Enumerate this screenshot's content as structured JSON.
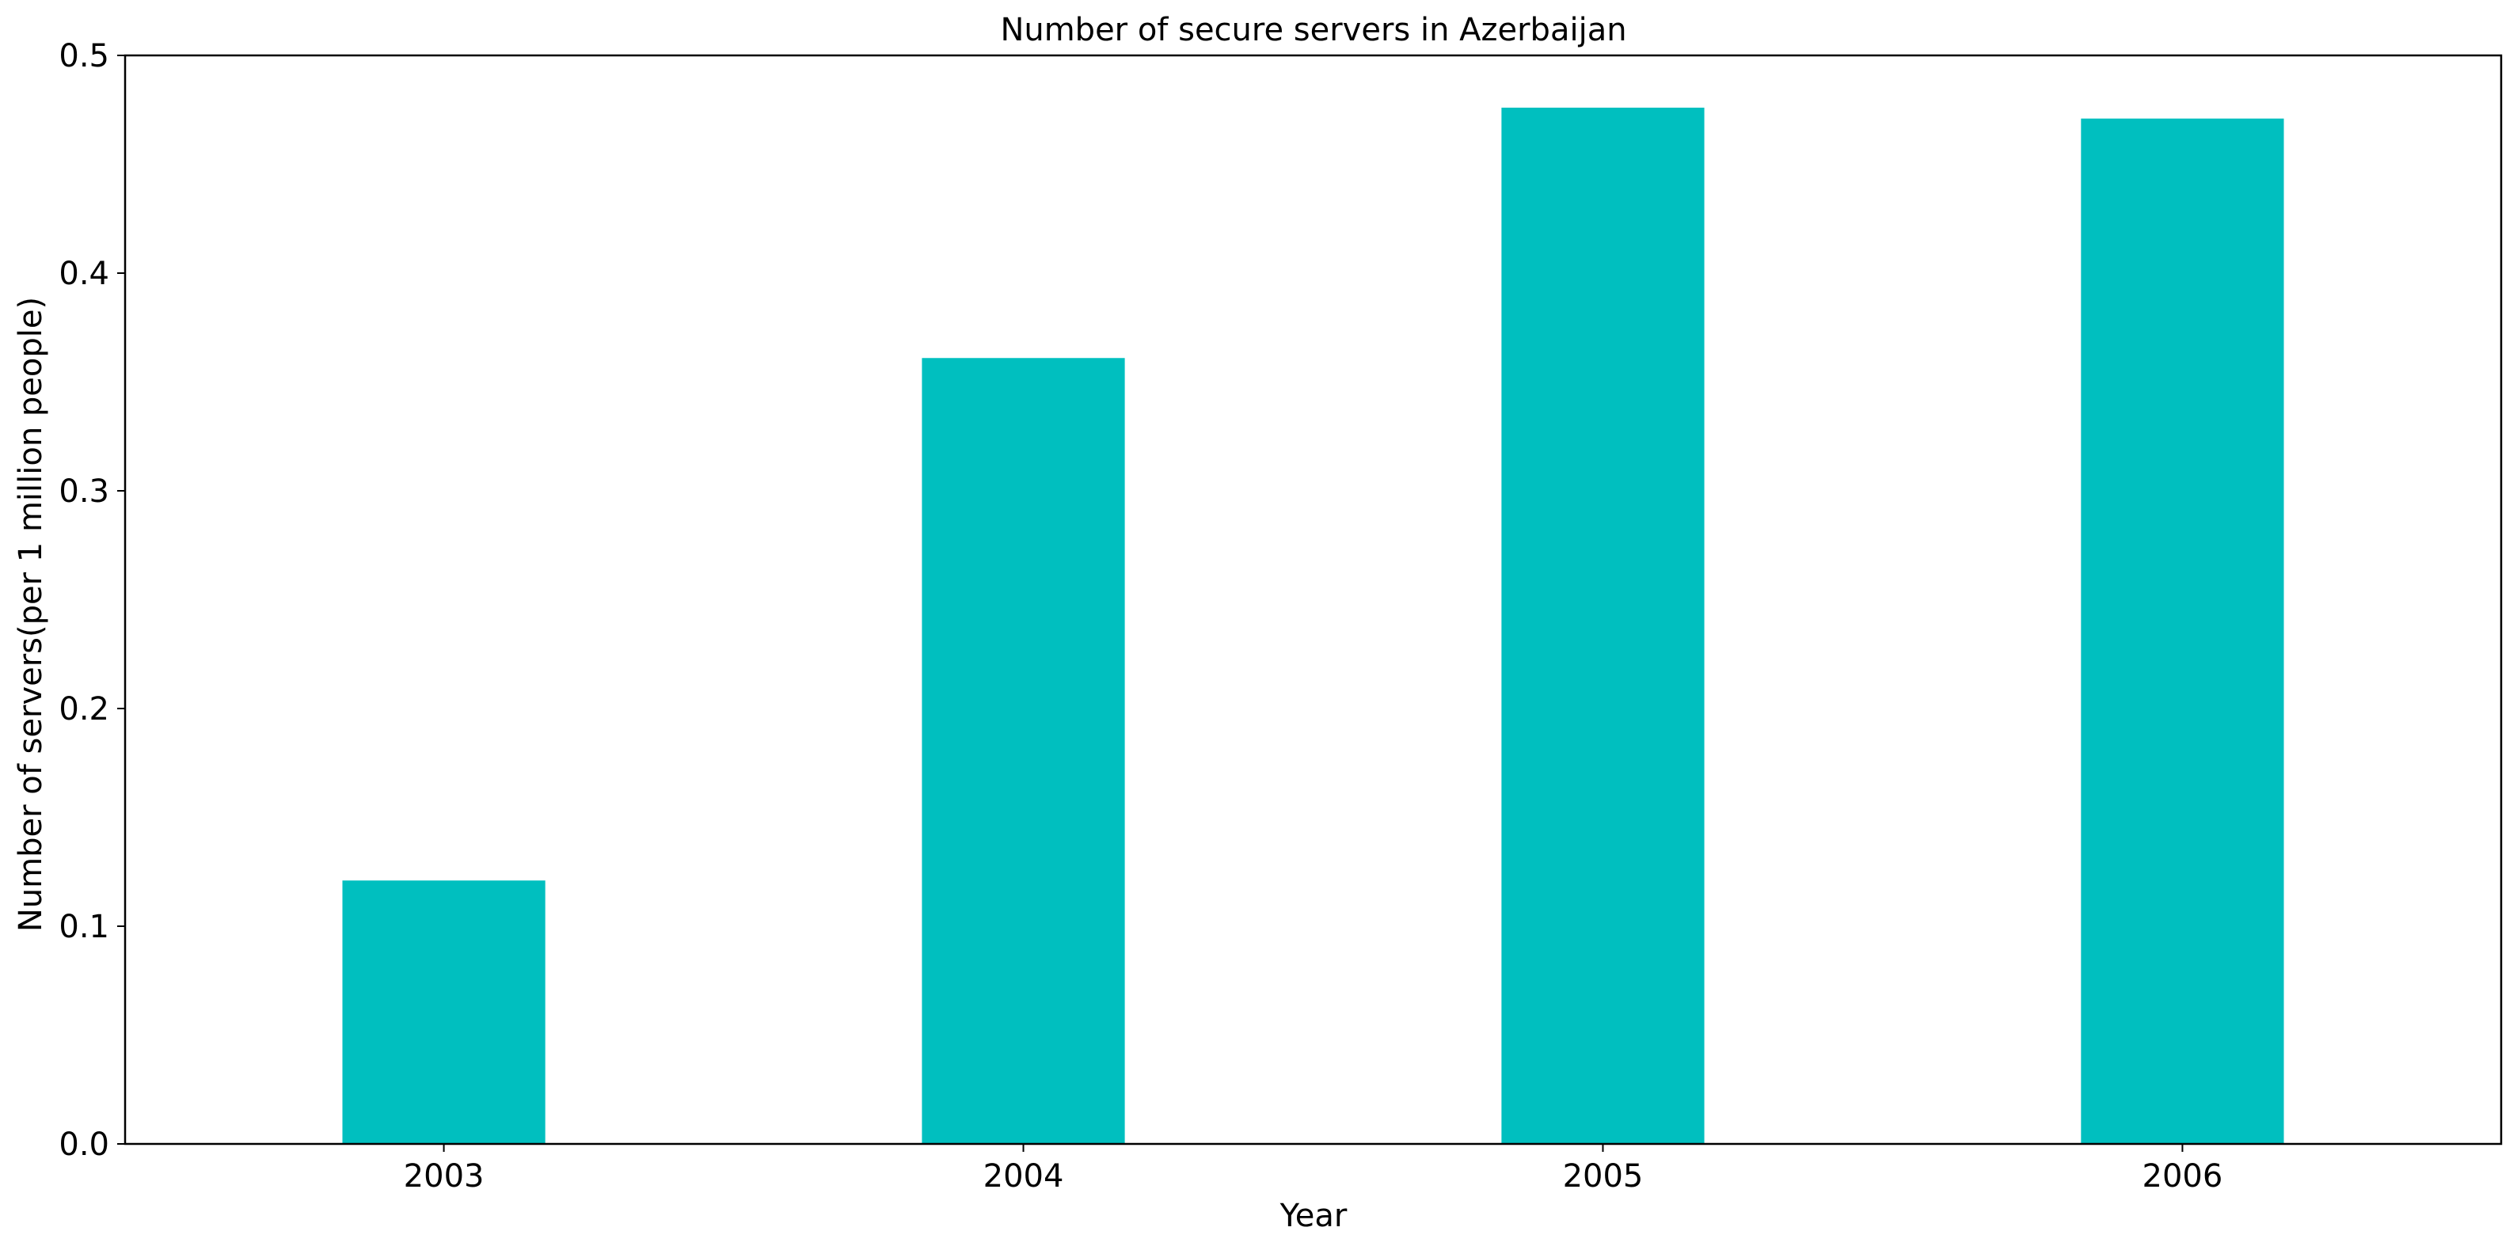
{
  "chart_data": {
    "type": "bar",
    "title": "Number of secure servers in Azerbaijan",
    "xlabel": "Year",
    "ylabel": "Number of servers(per 1 million people)",
    "categories": [
      "2003",
      "2004",
      "2005",
      "2006"
    ],
    "values": [
      0.121,
      0.361,
      0.476,
      0.471
    ],
    "ylim": [
      0,
      0.5
    ],
    "yticks": [
      "0.0",
      "0.1",
      "0.2",
      "0.3",
      "0.4",
      "0.5"
    ],
    "bar_color": "#00bfbf",
    "grid": false,
    "legend": "none"
  }
}
